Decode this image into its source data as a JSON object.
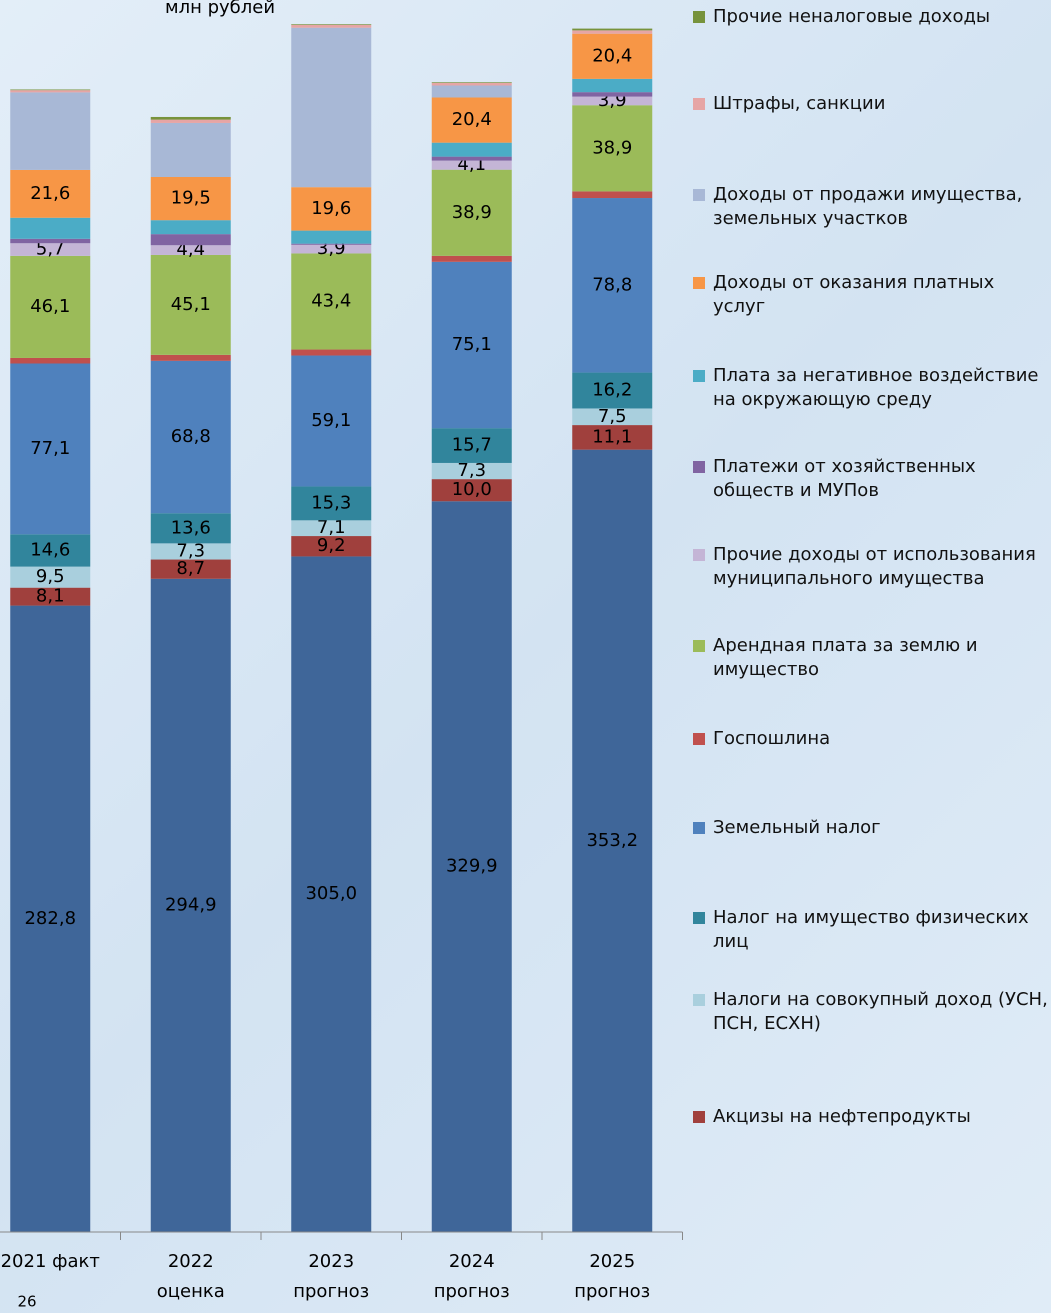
{
  "chart_data": {
    "type": "stacked_bar",
    "title": "млн рублей",
    "categories": [
      [
        "2021 факт"
      ],
      [
        "2022",
        "оценка"
      ],
      [
        "2023",
        "прогноз"
      ],
      [
        "2024",
        "прогноз"
      ],
      [
        "2025",
        "прогноз"
      ]
    ],
    "ylim": [
      0,
      550
    ],
    "series": [
      {
        "name": null,
        "color": "#3f6699",
        "values": [
          282.8,
          294.9,
          305.0,
          329.9,
          353.2
        ],
        "value_labels": [
          "282,8",
          "294,9",
          "305,0",
          "329,9",
          "353,2"
        ]
      },
      {
        "name": "Акцизы на нефтепродукты",
        "color": "#a0403d",
        "values": [
          8.1,
          8.7,
          9.2,
          10.0,
          11.1
        ],
        "value_labels": [
          "8,1",
          "8,7",
          "9,2",
          "10,0",
          "11,1"
        ]
      },
      {
        "name": "Налоги на совокупный доход (УСН, ПСН, ЕСХН)",
        "color": "#a9cfdd",
        "values": [
          9.5,
          7.3,
          7.1,
          7.3,
          7.5
        ],
        "value_labels": [
          "9,5",
          "7,3",
          "7,1",
          "7,3",
          "7,5"
        ]
      },
      {
        "name": "Налог на имущество физических лиц",
        "color": "#31859c",
        "values": [
          14.6,
          13.6,
          15.3,
          15.7,
          16.2
        ],
        "value_labels": [
          "14,6",
          "13,6",
          "15,3",
          "15,7",
          "16,2"
        ]
      },
      {
        "name": "Земельный налог",
        "color": "#4f81bd",
        "values": [
          77.1,
          68.8,
          59.1,
          75.1,
          78.8
        ],
        "value_labels": [
          "77,1",
          "68,8",
          "59,1",
          "75,1",
          "78,8"
        ]
      },
      {
        "name": "Госпошлина",
        "color": "#c0504d",
        "values": [
          2.5,
          2.7,
          2.7,
          2.7,
          3.0
        ]
      },
      {
        "name": "Арендная плата за землю и имущество",
        "color": "#9bbb59",
        "values": [
          46.1,
          45.1,
          43.4,
          38.9,
          38.9
        ],
        "value_labels": [
          "46,1",
          "45,1",
          "43,4",
          "38,9",
          "38,9"
        ]
      },
      {
        "name": "Прочие доходы от использования муниципального имущества",
        "color": "#c4b5d6",
        "values": [
          5.7,
          4.4,
          3.9,
          4.1,
          3.9
        ],
        "value_labels": [
          "5,7",
          "4,4",
          "3,9",
          "4,1",
          "3,9"
        ]
      },
      {
        "name": "Платежи от хозяйственных обществ и МУПов",
        "color": "#8064a2",
        "values": [
          2.0,
          5.0,
          0.5,
          1.8,
          2.0
        ]
      },
      {
        "name": "Плата за негативное воздействие на окружающую среду",
        "color": "#4bacc6",
        "values": [
          9.5,
          6.3,
          5.9,
          6.3,
          6.0
        ]
      },
      {
        "name": "Доходы от оказания платных услуг",
        "color": "#f79646",
        "values": [
          21.6,
          19.5,
          19.6,
          20.4,
          20.4
        ],
        "value_labels": [
          "21,6",
          "19,5",
          "19,6",
          "20,4",
          "20,4"
        ]
      },
      {
        "name": "Доходы от продажи имущества, земельных участков",
        "color": "#a8b8d6",
        "values": [
          35.0,
          24.4,
          72.0,
          5.4,
          0
        ]
      },
      {
        "name": "Штрафы, санкции",
        "color": "#e6a5a5",
        "values": [
          1.0,
          1.5,
          1.3,
          1.2,
          1.5
        ]
      },
      {
        "name": "Прочие неналоговые доходы",
        "color": "#77933c",
        "values": [
          0.3,
          1.2,
          0.3,
          0.3,
          0.8
        ]
      }
    ]
  },
  "page_number": "26"
}
